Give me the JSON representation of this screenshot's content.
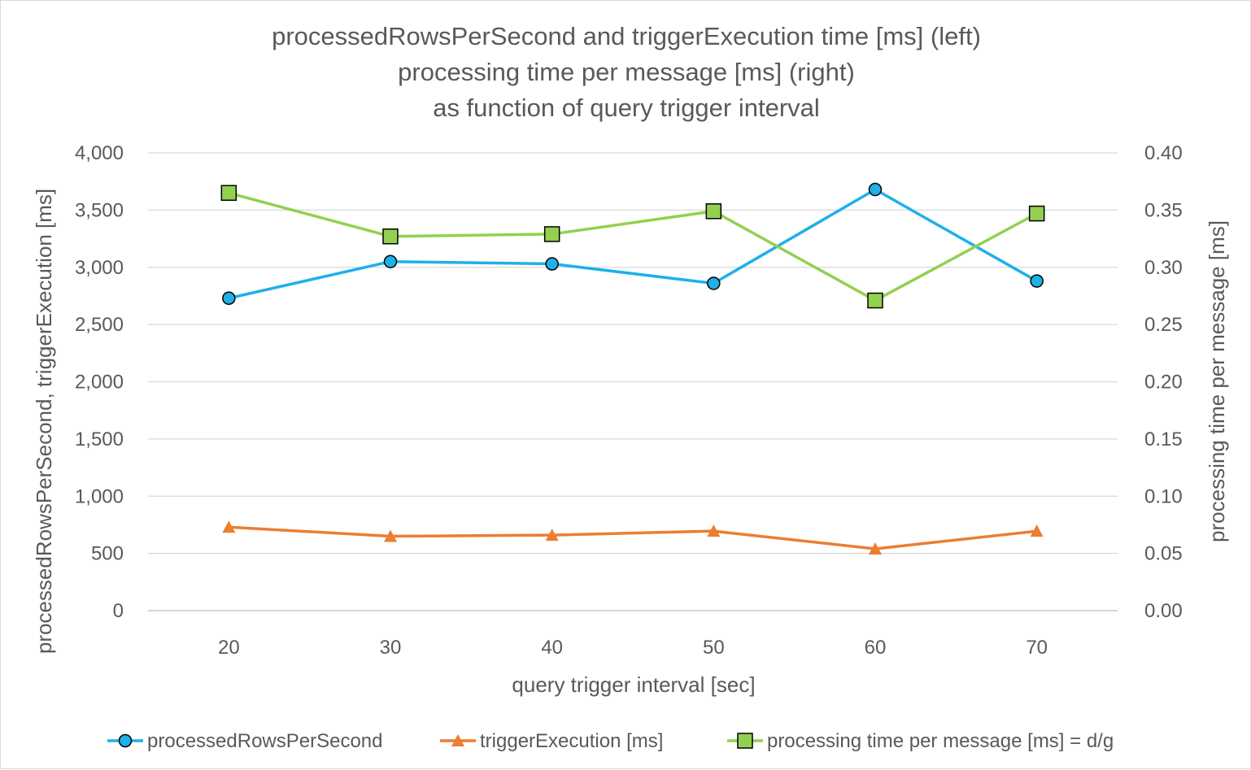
{
  "chart_data": {
    "type": "line",
    "title_lines": [
      "processedRowsPerSecond and triggerExecution time [ms] (left)",
      "processing time per message [ms] (right)",
      "as function of query trigger interval"
    ],
    "xlabel": "query trigger interval [sec]",
    "ylabel_left": "processedRowsPerSecond, triggerExecution [ms]",
    "ylabel_right": "processing time per message [ms]",
    "categories": [
      "20",
      "30",
      "40",
      "50",
      "60",
      "70"
    ],
    "x": [
      20,
      30,
      40,
      50,
      60,
      70
    ],
    "ylim_left": [
      0,
      4000
    ],
    "ylim_right": [
      0,
      0.4
    ],
    "left_ticks": [
      "4,000",
      "3,500",
      "3,000",
      "2,500",
      "2,000",
      "1,500",
      "1,000",
      "500",
      "0"
    ],
    "right_ticks": [
      "0.40",
      "0.35",
      "0.30",
      "0.25",
      "0.20",
      "0.15",
      "0.10",
      "0.05",
      "0.00"
    ],
    "grid": true,
    "legend_position": "bottom",
    "series": [
      {
        "name": "processedRowsPerSecond",
        "axis": "left",
        "color": "#1fb0e8",
        "marker": "circle",
        "values": [
          2730,
          3050,
          3030,
          2860,
          3680,
          2880
        ]
      },
      {
        "name": "triggerExecution [ms]",
        "axis": "left",
        "color": "#ed7d31",
        "marker": "triangle",
        "values": [
          730,
          650,
          660,
          695,
          540,
          695
        ]
      },
      {
        "name": "processing time per message [ms] = d/g",
        "axis": "right",
        "color": "#92d050",
        "marker": "square",
        "values": [
          0.365,
          0.327,
          0.329,
          0.349,
          0.271,
          0.347
        ]
      }
    ]
  }
}
